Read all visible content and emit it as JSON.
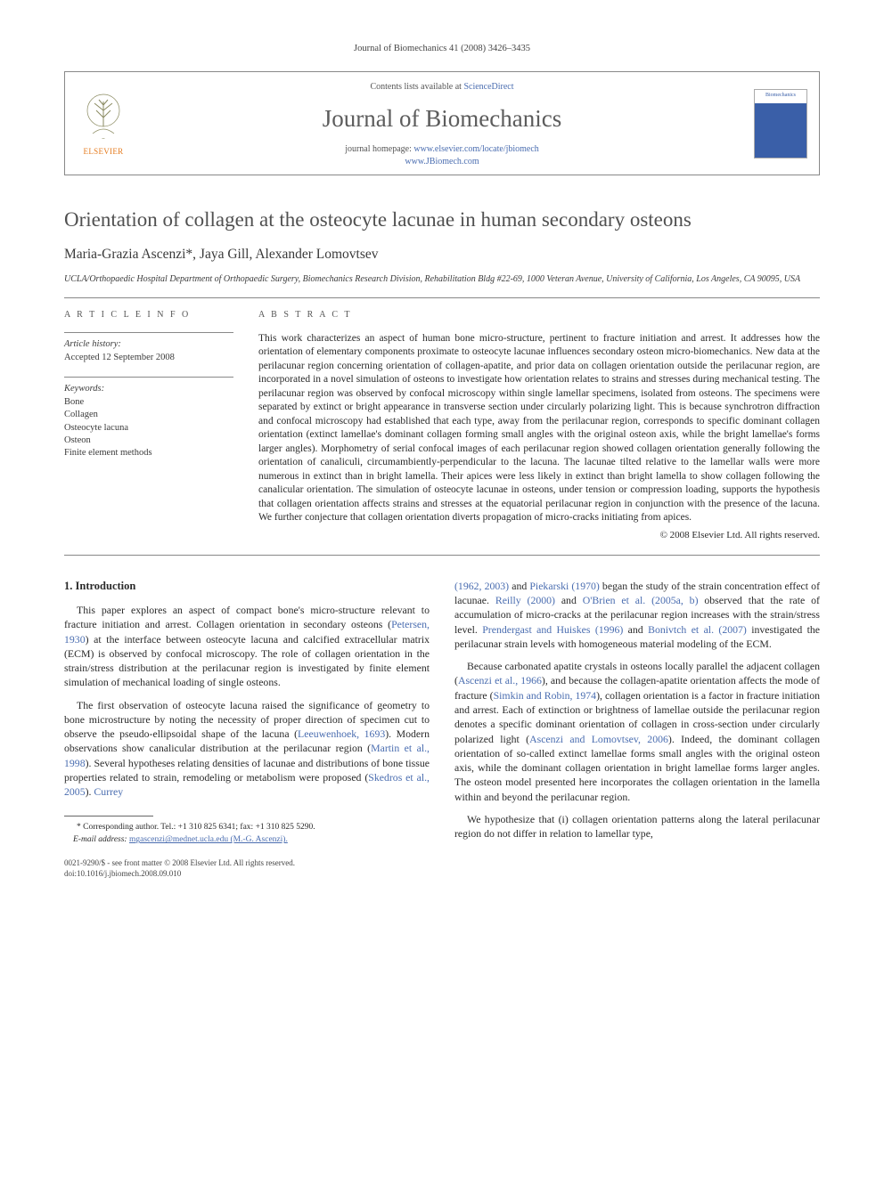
{
  "header": {
    "running_head": "Journal of Biomechanics 41 (2008) 3426–3435"
  },
  "masthead": {
    "contents_prefix": "Contents lists available at ",
    "contents_link": "ScienceDirect",
    "journal_name": "Journal of Biomechanics",
    "homepage_prefix": "journal homepage: ",
    "homepage1": "www.elsevier.com/locate/jbiomech",
    "homepage2": "www.JBiomech.com",
    "publisher_label": "ELSEVIER",
    "cover_label": "Biomechanics"
  },
  "article": {
    "title": "Orientation of collagen at the osteocyte lacunae in human secondary osteons",
    "authors": "Maria-Grazia Ascenzi*, Jaya Gill, Alexander Lomovtsev",
    "affiliation": "UCLA/Orthopaedic Hospital Department of Orthopaedic Surgery, Biomechanics Research Division, Rehabilitation Bldg #22-69, 1000 Veteran Avenue, University of California, Los Angeles, CA 90095, USA"
  },
  "info": {
    "heading": "A R T I C L E  I N F O",
    "history_label": "Article history:",
    "history_value": "Accepted 12 September 2008",
    "keywords_label": "Keywords:",
    "keywords": [
      "Bone",
      "Collagen",
      "Osteocyte lacuna",
      "Osteon",
      "Finite element methods"
    ]
  },
  "abstract": {
    "heading": "A B S T R A C T",
    "text": "This work characterizes an aspect of human bone micro-structure, pertinent to fracture initiation and arrest. It addresses how the orientation of elementary components proximate to osteocyte lacunae influences secondary osteon micro-biomechanics. New data at the perilacunar region concerning orientation of collagen-apatite, and prior data on collagen orientation outside the perilacunar region, are incorporated in a novel simulation of osteons to investigate how orientation relates to strains and stresses during mechanical testing. The perilacunar region was observed by confocal microscopy within single lamellar specimens, isolated from osteons. The specimens were separated by extinct or bright appearance in transverse section under circularly polarizing light. This is because synchrotron diffraction and confocal microscopy had established that each type, away from the perilacunar region, corresponds to specific dominant collagen orientation (extinct lamellae's dominant collagen forming small angles with the original osteon axis, while the bright lamellae's forms larger angles). Morphometry of serial confocal images of each perilacunar region showed collagen orientation generally following the orientation of canaliculi, circumambiently-perpendicular to the lacuna. The lacunae tilted relative to the lamellar walls were more numerous in extinct than in bright lamella. Their apices were less likely in extinct than bright lamella to show collagen following the canalicular orientation. The simulation of osteocyte lacunae in osteons, under tension or compression loading, supports the hypothesis that collagen orientation affects strains and stresses at the equatorial perilacunar region in conjunction with the presence of the lacuna. We further conjecture that collagen orientation diverts propagation of micro-cracks initiating from apices.",
    "copyright": "© 2008 Elsevier Ltd. All rights reserved."
  },
  "body": {
    "section_heading": "1. Introduction",
    "left_paras": [
      "This paper explores an aspect of compact bone's micro-structure relevant to fracture initiation and arrest. Collagen orientation in secondary osteons (Petersen, 1930) at the interface between osteocyte lacuna and calcified extracellular matrix (ECM) is observed by confocal microscopy. The role of collagen orientation in the strain/stress distribution at the perilacunar region is investigated by finite element simulation of mechanical loading of single osteons.",
      "The first observation of osteocyte lacuna raised the significance of geometry to bone microstructure by noting the necessity of proper direction of specimen cut to observe the pseudo-ellipsoidal shape of the lacuna (Leeuwenhoek, 1693). Modern observations show canalicular distribution at the perilacunar region (Martin et al., 1998). Several hypotheses relating densities of lacunae and distributions of bone tissue properties related to strain, remodeling or metabolism were proposed (Skedros et al., 2005). Currey"
    ],
    "right_paras": [
      "(1962, 2003) and Piekarski (1970) began the study of the strain concentration effect of lacunae. Reilly (2000) and O'Brien et al. (2005a, b) observed that the rate of accumulation of micro-cracks at the perilacunar region increases with the strain/stress level. Prendergast and Huiskes (1996) and Bonivtch et al. (2007) investigated the perilacunar strain levels with homogeneous material modeling of the ECM.",
      "Because carbonated apatite crystals in osteons locally parallel the adjacent collagen (Ascenzi et al., 1966), and because the collagen-apatite orientation affects the mode of fracture (Simkin and Robin, 1974), collagen orientation is a factor in fracture initiation and arrest. Each of extinction or brightness of lamellae outside the perilacunar region denotes a specific dominant orientation of collagen in cross-section under circularly polarized light (Ascenzi and Lomovtsev, 2006). Indeed, the dominant collagen orientation of so-called extinct lamellae forms small angles with the original osteon axis, while the dominant collagen orientation in bright lamellae forms larger angles. The osteon model presented here incorporates the collagen orientation in the lamella within and beyond the perilacunar region.",
      "We hypothesize that (i) collagen orientation patterns along the lateral perilacunar region do not differ in relation to lamellar type,"
    ]
  },
  "footnote": {
    "corr_line": "* Corresponding author. Tel.: +1 310 825 6341; fax: +1 310 825 5290.",
    "email_label": "E-mail address:",
    "email_value": "mgascenzi@mednet.ucla.edu (M.-G. Ascenzi)."
  },
  "bottom": {
    "issn_line": "0021-9290/$ - see front matter © 2008 Elsevier Ltd. All rights reserved.",
    "doi_line": "doi:10.1016/j.jbiomech.2008.09.010"
  },
  "colors": {
    "link": "#4a6db0",
    "text": "#2a2a2a",
    "orange": "#e57b1e",
    "rule": "#888888"
  }
}
